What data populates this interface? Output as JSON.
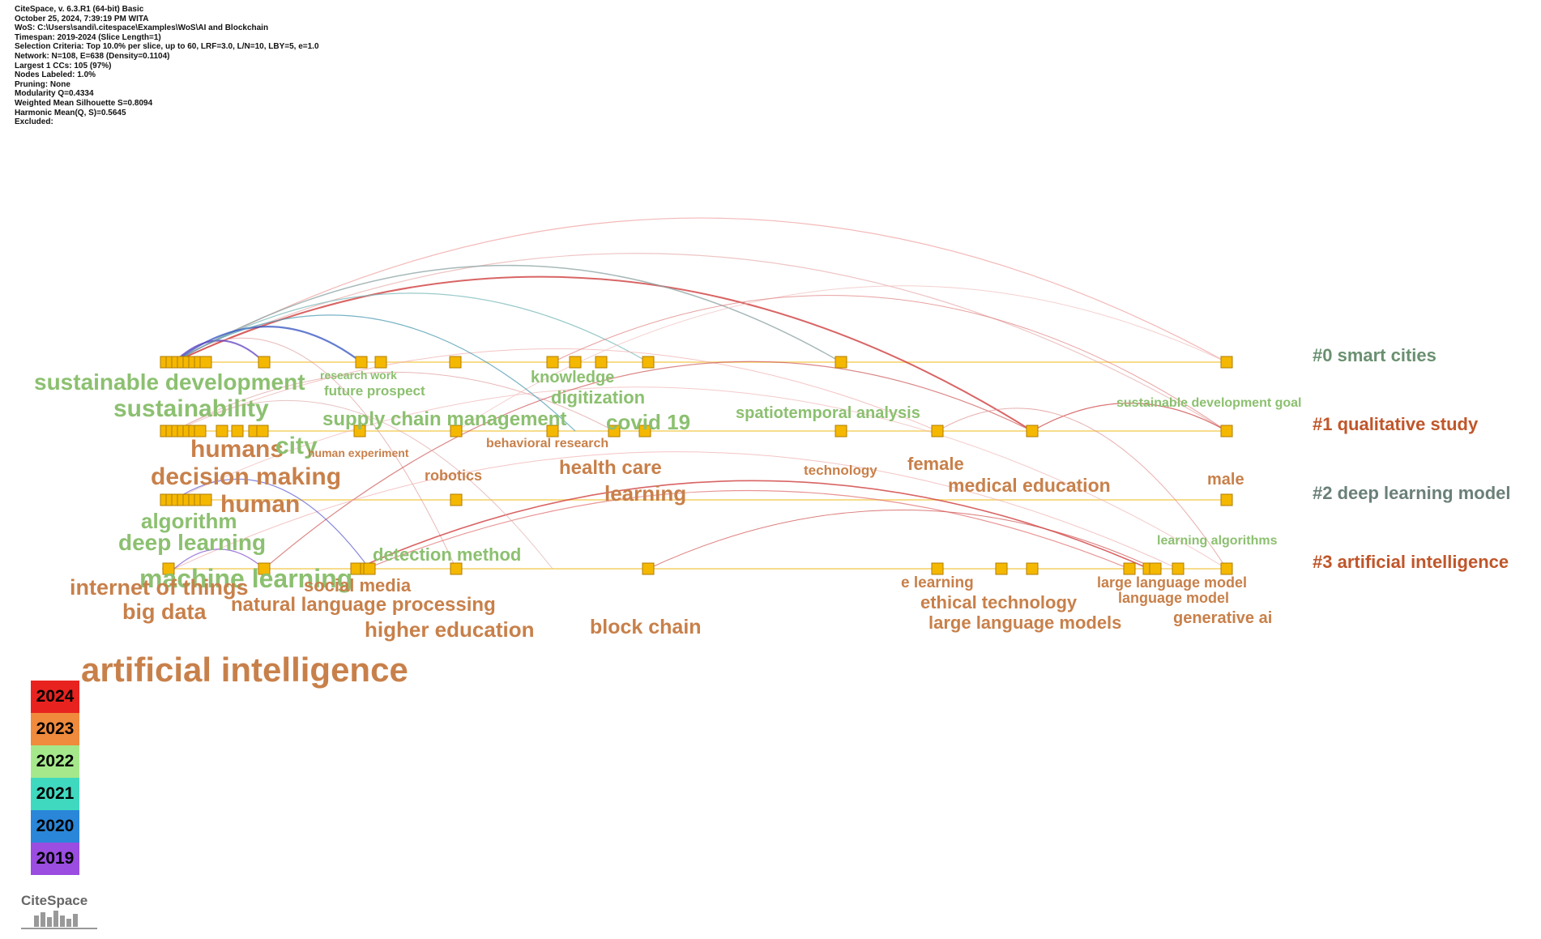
{
  "meta_lines": [
    "CiteSpace, v. 6.3.R1 (64-bit) Basic",
    "October 25, 2024, 7:39:19 PM WITA",
    "WoS: C:\\Users\\sandi\\.citespace\\Examples\\WoS\\AI and Blockchain",
    "Timespan: 2019-2024 (Slice Length=1)",
    "Selection Criteria: Top 10.0% per slice, up to 60, LRF=3.0, L/N=10, LBY=5, e=1.0",
    "Network: N=108, E=638 (Density=0.1104)",
    "Largest 1 CCs: 105 (97%)",
    "Nodes Labeled: 1.0%",
    "Pruning: None",
    "Modularity Q=0.4334",
    "Weighted Mean Silhouette S=0.8094",
    "Harmonic Mean(Q, S)=0.5645",
    "Excluded:"
  ],
  "clusters": [
    {
      "label": "#0 smart cities",
      "color": "#6a9070"
    },
    {
      "label": "#1 qualitative study",
      "color": "#c0562a"
    },
    {
      "label": "#2 deep learning model",
      "color": "#6a8078"
    },
    {
      "label": "#3 artificial intelligence",
      "color": "#c0562a"
    }
  ],
  "keywords": [
    {
      "text": "sustainable development",
      "cls": "green"
    },
    {
      "text": "sustainability",
      "cls": "green"
    },
    {
      "text": "research work",
      "cls": "green"
    },
    {
      "text": "future prospect",
      "cls": "green"
    },
    {
      "text": "knowledge",
      "cls": "green"
    },
    {
      "text": "digitization",
      "cls": "green"
    },
    {
      "text": "supply chain management",
      "cls": "green"
    },
    {
      "text": "covid 19",
      "cls": "green"
    },
    {
      "text": "spatiotemporal analysis",
      "cls": "green"
    },
    {
      "text": "sustainable development goal",
      "cls": "green"
    },
    {
      "text": "humans",
      "cls": "brown"
    },
    {
      "text": "city",
      "cls": "green"
    },
    {
      "text": "human experiment",
      "cls": "brown"
    },
    {
      "text": "behavioral research",
      "cls": "brown"
    },
    {
      "text": "decision making",
      "cls": "brown"
    },
    {
      "text": "robotics",
      "cls": "brown"
    },
    {
      "text": "health care",
      "cls": "brown"
    },
    {
      "text": "learning",
      "cls": "brown"
    },
    {
      "text": "technology",
      "cls": "brown"
    },
    {
      "text": "female",
      "cls": "brown"
    },
    {
      "text": "medical education",
      "cls": "brown"
    },
    {
      "text": "male",
      "cls": "brown"
    },
    {
      "text": "human",
      "cls": "brown"
    },
    {
      "text": "algorithm",
      "cls": "green"
    },
    {
      "text": "deep learning",
      "cls": "green"
    },
    {
      "text": "learning algorithms",
      "cls": "green"
    },
    {
      "text": "detection method",
      "cls": "green"
    },
    {
      "text": "machine learning",
      "cls": "green"
    },
    {
      "text": "internet of things",
      "cls": "brown"
    },
    {
      "text": "social media",
      "cls": "brown"
    },
    {
      "text": "big data",
      "cls": "brown"
    },
    {
      "text": "natural language processing",
      "cls": "brown"
    },
    {
      "text": "higher education",
      "cls": "brown"
    },
    {
      "text": "block chain",
      "cls": "brown"
    },
    {
      "text": "e learning",
      "cls": "brown"
    },
    {
      "text": "ethical technology",
      "cls": "brown"
    },
    {
      "text": "large language models",
      "cls": "brown"
    },
    {
      "text": "large language model",
      "cls": "brown"
    },
    {
      "text": "language model",
      "cls": "brown"
    },
    {
      "text": "generative ai",
      "cls": "brown"
    },
    {
      "text": "artificial intelligence",
      "cls": "brown"
    }
  ],
  "legend": [
    {
      "year": "2024",
      "color": "#e8231f"
    },
    {
      "year": "2023",
      "color": "#f08a3c"
    },
    {
      "year": "2022",
      "color": "#a5e88c"
    },
    {
      "year": "2021",
      "color": "#3fd9c0"
    },
    {
      "year": "2020",
      "color": "#2a86d8"
    },
    {
      "year": "2019",
      "color": "#9a4de0"
    }
  ],
  "logo_text": "CiteSpace"
}
